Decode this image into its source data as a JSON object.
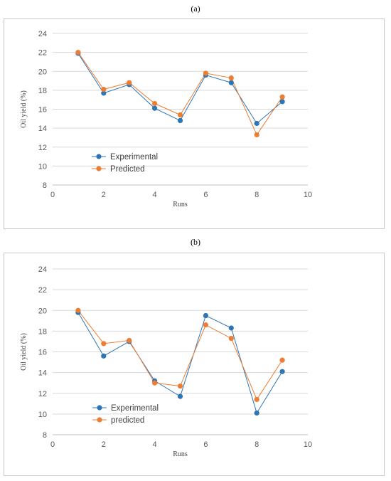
{
  "panels": [
    {
      "label": "(a)"
    },
    {
      "label": "(b)"
    }
  ],
  "colors": {
    "experimental": "#2e75b6",
    "predicted": "#ed7d31",
    "grid": "#d9d9d9"
  },
  "chart_data": [
    {
      "type": "scatter",
      "xlabel": "Runs",
      "ylabel": "Oil yield (%)",
      "xlim": [
        0,
        10
      ],
      "ylim": [
        8,
        24
      ],
      "xticks": [
        "0",
        "2",
        "4",
        "6",
        "8",
        "10"
      ],
      "yticks": [
        "8",
        "10",
        "12",
        "14",
        "16",
        "18",
        "20",
        "22",
        "24"
      ],
      "grid": "horizontal",
      "legend": "lower-left",
      "series": [
        {
          "name": "Experimental",
          "x": [
            1,
            2,
            3,
            4,
            5,
            6,
            7,
            8,
            9
          ],
          "y": [
            21.9,
            17.7,
            18.6,
            16.1,
            14.8,
            19.6,
            18.8,
            14.5,
            16.8
          ]
        },
        {
          "name": "Predicted",
          "x": [
            1,
            2,
            3,
            4,
            5,
            6,
            7,
            8,
            9
          ],
          "y": [
            22.0,
            18.1,
            18.8,
            16.6,
            15.4,
            19.8,
            19.3,
            13.3,
            17.3
          ]
        }
      ]
    },
    {
      "type": "scatter",
      "xlabel": "Runs",
      "ylabel": "Oil yield (%)",
      "xlim": [
        0,
        10
      ],
      "ylim": [
        8,
        24
      ],
      "xticks": [
        "0",
        "2",
        "4",
        "6",
        "8",
        "10"
      ],
      "yticks": [
        "8",
        "10",
        "12",
        "14",
        "16",
        "18",
        "20",
        "22",
        "24"
      ],
      "grid": "horizontal",
      "legend": "lower-left",
      "series": [
        {
          "name": "Experimental",
          "x": [
            1,
            2,
            3,
            4,
            5,
            6,
            7,
            8,
            9
          ],
          "y": [
            19.8,
            15.6,
            17.0,
            13.2,
            11.7,
            19.5,
            18.3,
            10.1,
            14.1
          ]
        },
        {
          "name": "predicted",
          "x": [
            1,
            2,
            3,
            4,
            5,
            6,
            7,
            8,
            9
          ],
          "y": [
            20.0,
            16.8,
            17.1,
            13.0,
            12.7,
            18.6,
            17.3,
            11.4,
            15.2
          ]
        }
      ]
    }
  ]
}
